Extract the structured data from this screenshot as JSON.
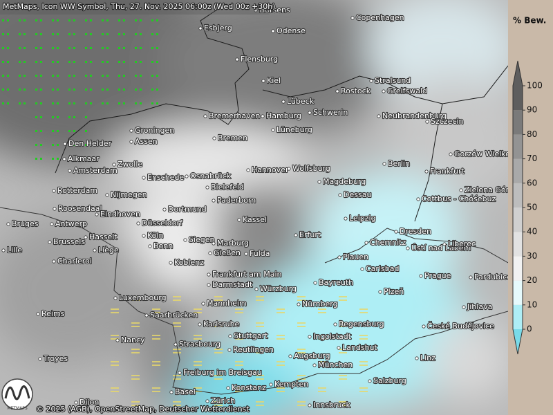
{
  "header": {
    "title": "MetMaps, Icon WW-Symbol, Thu, 27. Nov. 2025 06:00z (Wed 00z +30h)"
  },
  "footer": {
    "copyright": "© 2025 (AGB), OpenStreetMap, Deutscher Wetterdienst",
    "logo_text": "METMAPS"
  },
  "legend": {
    "title": "% Bew.",
    "ticks": [
      0,
      10,
      20,
      30,
      40,
      50,
      60,
      70,
      80,
      90,
      100
    ],
    "colors": [
      "#79dbe9",
      "#aeeef5",
      "#e6fafc",
      "#f2f2f2",
      "#e2e2e2",
      "#d0d0d0",
      "#bdbdbd",
      "#a9a9a9",
      "#939393",
      "#7a7a7a",
      "#5e5e5e"
    ]
  },
  "cities": [
    "Horsens",
    "Copenhagen",
    "Esbjerg",
    "Odense",
    "Flensburg",
    "Kiel",
    "Stralsund",
    "Lübeck",
    "Rostock",
    "Greifswald",
    "Schwerin",
    "Neubrandenburg",
    "Szczecin",
    "Bremerhaven",
    "Hamburg",
    "Groningen",
    "Lüneburg",
    "Assen",
    "Bremen",
    "Den Helder",
    "Gorzów Wielkopolski",
    "Alkmaar",
    "Zwolle",
    "Amsterdam",
    "Hannover",
    "Wolfsburg",
    "Berlin",
    "Frankfurt",
    "Enschede",
    "Osnabrück",
    "Magdeburg",
    "Rotterdam",
    "Bielefeld",
    "Zielona Góra",
    "Nijmegen",
    "Dessau",
    "Cottbus - Chóśebuz",
    "Paderborn",
    "Roosendaal",
    "Dortmund",
    "Eindhoven",
    "Kassel",
    "Leipzig",
    "Bruges",
    "Antwerp",
    "Düsseldorf",
    "Dresden",
    "Erfurt",
    "Hasselt",
    "Brussels",
    "Köln",
    "Siegen",
    "Marburg",
    "Chemnitz",
    "Ústí nad Labem",
    "Liberec",
    "Bonn",
    "Lille",
    "Liège",
    "Gießen",
    "Fulda",
    "Plauen",
    "Charleroi",
    "Koblenz",
    "Carlsbad",
    "Frankfurt am Main",
    "Prague",
    "Pardubice",
    "Bayreuth",
    "Darmstadt",
    "Würzburg",
    "Plzeň",
    "Luxembourg",
    "Mannheim",
    "Nürnberg",
    "Jihlava",
    "Reims",
    "Saarbrücken",
    "Regensburg",
    "Karlsruhe",
    "České Budějovice",
    "Stuttgart",
    "Ingolstadt",
    "Nancy",
    "Strasbourg",
    "Landshut",
    "Reutlingen",
    "Augsburg",
    "Troyes",
    "Linz",
    "München",
    "Freiburg im Breisgau",
    "Salzburg",
    "Kempten",
    "Konstanz",
    "Basel",
    "Zürich",
    "Innsbruck",
    "Dijon"
  ]
}
